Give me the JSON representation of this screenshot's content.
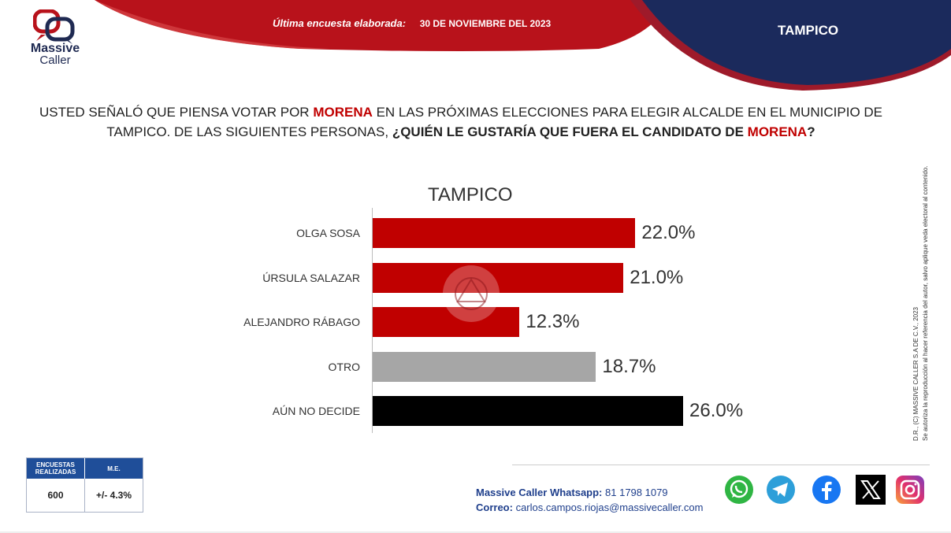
{
  "header": {
    "last_survey_label": "Última encuesta elaborada:",
    "last_survey_date": "30 DE NOVIEMBRE  DEL 2023",
    "region": "TAMPICO"
  },
  "logo": {
    "line1": "Massive",
    "line2": "Caller"
  },
  "question": {
    "part1": "USTED SEÑALÓ QUE PIENSA VOTAR POR ",
    "party1": "MORENA",
    "part2": " EN LAS PRÓXIMAS ELECCIONES PARA ELEGIR ALCALDE EN EL MUNICIPIO DE TAMPICO. DE LAS SIGUIENTES PERSONAS, ",
    "part3": "¿QUIÉN LE GUSTARÍA QUE FUERA EL CANDIDATO DE ",
    "party2": "MORENA",
    "part4": "?"
  },
  "chart_data": {
    "type": "bar",
    "orientation": "horizontal",
    "title": "TAMPICO",
    "categories": [
      "OLGA SOSA",
      "ÚRSULA SALAZAR",
      "ALEJANDRO RÁBAGO",
      "OTRO",
      "AÚN NO DECIDE"
    ],
    "values": [
      22.0,
      21.0,
      12.3,
      18.7,
      26.0
    ],
    "labels": [
      "22.0%",
      "21.0%",
      "12.3%",
      "18.7%",
      "26.0%"
    ],
    "colors": [
      "#c00000",
      "#c00000",
      "#c00000",
      "#a6a6a6",
      "#000000"
    ],
    "xlim": [
      0,
      26.0
    ],
    "unit": "%"
  },
  "rights": {
    "line1": "D.R., (C) MASSIVE CALLER S.A DE C.V., 2023",
    "line2": "Se autoriza la reproducción al hacer referencia del autor, salvo aplique veda electoral al contenido."
  },
  "stats": {
    "header1": "ENCUESTAS REALIZADAS",
    "header2": "M.E.",
    "surveys": "600",
    "margin": "+/- 4.3%"
  },
  "contact": {
    "whatsapp_label": "Massive Caller Whatsapp:",
    "whatsapp_number": "81 1798  1079",
    "email_label": "Correo:",
    "email": "carlos.campos.riojas@massivecaller.com"
  },
  "social": [
    "whatsapp-icon",
    "telegram-icon",
    "facebook-icon",
    "x-icon",
    "instagram-icon"
  ]
}
